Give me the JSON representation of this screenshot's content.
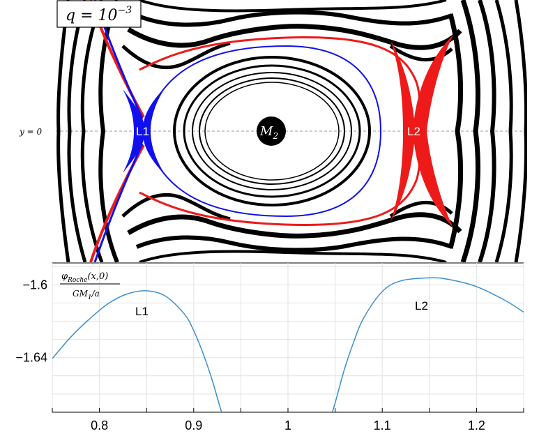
{
  "panel_top": {
    "q_label_prefix": "q = 10",
    "q_label_exp": "−3",
    "axis_label": "y = 0",
    "body_label": "M",
    "body_sub": "2",
    "l1_label": "L1",
    "l2_label": "L2",
    "colors": {
      "l1_lobe": "#1010ee",
      "l2_lobe": "#ee1a1a",
      "contours": "#000000",
      "axis": "#999999"
    }
  },
  "chart_data": {
    "type": "line",
    "ylabel_num_main": "φ",
    "ylabel_num_sub": "Roche",
    "ylabel_num_rest": "(x,0)",
    "ylabel_den_main": "GM",
    "ylabel_den_sub": "1",
    "ylabel_den_rest": "/a",
    "xlim": [
      0.75,
      1.25
    ],
    "ylim": [
      -1.67,
      -1.588
    ],
    "x_ticks": [
      "0.8",
      "0.9",
      "1",
      "1.1",
      "1.2"
    ],
    "y_ticks": [
      "−1.6",
      "−1.64"
    ],
    "grid": true,
    "series_color": "#3a8fd0",
    "annotations": [
      "L1",
      "L2"
    ],
    "series": [
      {
        "x": [
          0.75,
          0.77,
          0.79,
          0.81,
          0.83,
          0.85,
          0.87,
          0.89,
          0.9,
          0.91,
          0.92,
          0.93,
          0.935
        ],
        "values": [
          -1.6405,
          -1.6285,
          -1.6185,
          -1.6101,
          -1.6049,
          -1.6033,
          -1.6062,
          -1.616,
          -1.6252,
          -1.6378,
          -1.653,
          -1.6705,
          -1.674
        ]
      },
      {
        "x": [
          1.045,
          1.05,
          1.06,
          1.07,
          1.08,
          1.1,
          1.12,
          1.15,
          1.17,
          1.2,
          1.23,
          1.25
        ],
        "values": [
          -1.673,
          -1.665,
          -1.6462,
          -1.631,
          -1.6185,
          -1.6037,
          -1.5978,
          -1.5962,
          -1.597,
          -1.601,
          -1.6085,
          -1.615
        ]
      }
    ]
  }
}
